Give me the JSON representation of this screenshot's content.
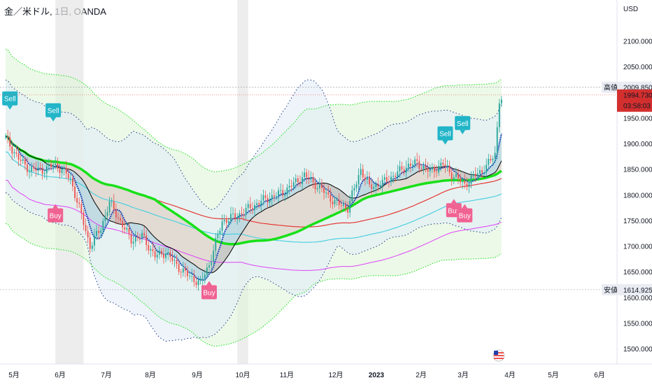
{
  "header": {
    "title": "金／米ドル, 1日, OANDA"
  },
  "chart_data": {
    "type": "candlestick",
    "currency_label": "USD",
    "ylim": [
      1470,
      2150
    ],
    "y_ticks": [
      "2100.000",
      "2050.000",
      "2000.000",
      "1950.000",
      "1900.000",
      "1850.000",
      "1800.000",
      "1750.000",
      "1700.000",
      "1650.000",
      "1600.000",
      "1550.000",
      "1500.000"
    ],
    "x_ticks": [
      {
        "label": "5月",
        "bold": false
      },
      {
        "label": "6月",
        "bold": false
      },
      {
        "label": "7月",
        "bold": false
      },
      {
        "label": "8月",
        "bold": false
      },
      {
        "label": "9月",
        "bold": false
      },
      {
        "label": "10月",
        "bold": false
      },
      {
        "label": "11月",
        "bold": false
      },
      {
        "label": "12月",
        "bold": false
      },
      {
        "label": "2023",
        "bold": true
      },
      {
        "label": "2月",
        "bold": false
      },
      {
        "label": "3月",
        "bold": false
      },
      {
        "label": "4月",
        "bold": false
      },
      {
        "label": "5月",
        "bold": false
      },
      {
        "label": "6月",
        "bold": false
      }
    ],
    "price_markers": [
      {
        "label": "高値",
        "value": "2009.850",
        "price": 2009.85
      },
      {
        "label": "安値",
        "value": "1614.925",
        "price": 1614.925
      }
    ],
    "current_price": {
      "value": "1994.730",
      "countdown": "03:58:03",
      "price": 1994.73
    },
    "close_path": [
      [
        0,
        1910
      ],
      [
        6,
        1870
      ],
      [
        11,
        1850
      ],
      [
        17,
        1848
      ],
      [
        22,
        1858
      ],
      [
        26,
        1850
      ],
      [
        30,
        1830
      ],
      [
        35,
        1760
      ],
      [
        39,
        1700
      ],
      [
        44,
        1735
      ],
      [
        48,
        1785
      ],
      [
        53,
        1748
      ],
      [
        58,
        1712
      ],
      [
        63,
        1720
      ],
      [
        69,
        1680
      ],
      [
        74,
        1688
      ],
      [
        79,
        1662
      ],
      [
        85,
        1640
      ],
      [
        90,
        1628
      ],
      [
        94,
        1664
      ],
      [
        100,
        1748
      ],
      [
        108,
        1762
      ],
      [
        118,
        1788
      ],
      [
        128,
        1805
      ],
      [
        138,
        1838
      ],
      [
        146,
        1810
      ],
      [
        152,
        1785
      ],
      [
        158,
        1774
      ],
      [
        164,
        1850
      ],
      [
        168,
        1815
      ],
      [
        174,
        1823
      ],
      [
        180,
        1840
      ],
      [
        186,
        1858
      ],
      [
        190,
        1862
      ],
      [
        196,
        1845
      ],
      [
        202,
        1860
      ],
      [
        206,
        1840
      ],
      [
        212,
        1820
      ],
      [
        216,
        1835
      ],
      [
        222,
        1855
      ],
      [
        226,
        1880
      ],
      [
        228,
        1986
      ]
    ],
    "signals": [
      {
        "label": "Sell",
        "type": "sell",
        "t": 2,
        "price": 1988
      },
      {
        "label": "Sell",
        "type": "sell",
        "t": 22,
        "price": 1965
      },
      {
        "label": "Buy",
        "type": "buy",
        "t": 23,
        "price": 1760
      },
      {
        "label": "Buy",
        "type": "buy",
        "t": 94,
        "price": 1610
      },
      {
        "label": "Sell",
        "type": "sell",
        "t": 203,
        "price": 1920
      },
      {
        "label": "Sell",
        "type": "sell",
        "t": 211,
        "price": 1940
      },
      {
        "label": "Buy",
        "type": "buy",
        "t": 207,
        "price": 1770
      },
      {
        "label": "Buy",
        "type": "buy",
        "t": 212,
        "price": 1760
      }
    ],
    "colors": {
      "up": "#26a69a",
      "down": "#ef5350",
      "green_ma": "#18e018",
      "red_ma": "#e53935",
      "cyan_ma": "#4dd0e1",
      "magenta_ma": "#e040fb",
      "black_ma": "#000000",
      "blue_ma": "#1e4db7",
      "sell": "#22b5c8",
      "buy": "#f06292",
      "highlight": "#e6e6e6"
    }
  }
}
